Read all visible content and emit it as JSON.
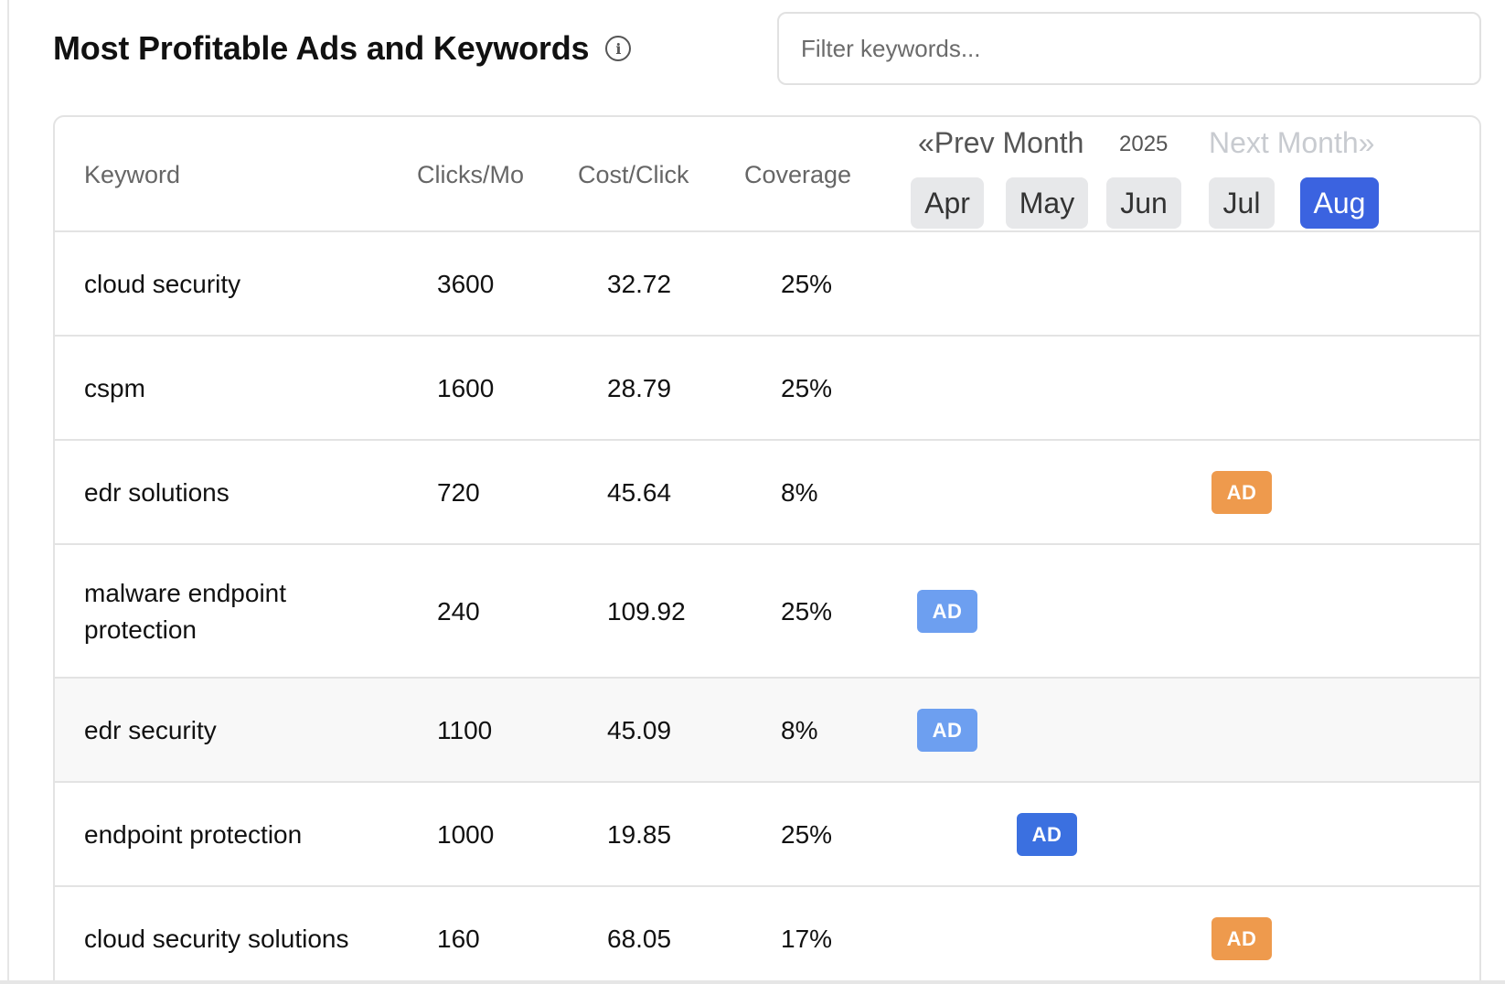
{
  "header": {
    "title": "Most Profitable Ads and Keywords",
    "filter_placeholder": "Filter keywords..."
  },
  "table": {
    "columns": {
      "keyword": "Keyword",
      "clicks": "Clicks/Mo",
      "cost": "Cost/Click",
      "coverage": "Coverage"
    },
    "calendar": {
      "prev_label": "«Prev Month",
      "year": "2025",
      "next_label": "Next Month»",
      "months": [
        "Apr",
        "May",
        "Jun",
        "Jul",
        "Aug"
      ],
      "active_month": "Aug"
    },
    "ad_label": "AD",
    "rows": [
      {
        "keyword": "cloud security",
        "clicks": "3600",
        "cost": "32.72",
        "coverage": "25%",
        "ad": null
      },
      {
        "keyword": "cspm",
        "clicks": "1600",
        "cost": "28.79",
        "coverage": "25%",
        "ad": null
      },
      {
        "keyword": "edr solutions",
        "clicks": "720",
        "cost": "45.64",
        "coverage": "8%",
        "ad": {
          "month": "Jul",
          "color": "#ee9a4d"
        }
      },
      {
        "keyword": "malware endpoint protection",
        "clicks": "240",
        "cost": "109.92",
        "coverage": "25%",
        "ad": {
          "month": "Apr",
          "color": "#6d9ff0"
        }
      },
      {
        "keyword": "edr security",
        "clicks": "1100",
        "cost": "45.09",
        "coverage": "8%",
        "ad": {
          "month": "Apr",
          "color": "#6d9ff0"
        }
      },
      {
        "keyword": "endpoint protection",
        "clicks": "1000",
        "cost": "19.85",
        "coverage": "25%",
        "ad": {
          "month": "May",
          "color": "#3b70e0"
        }
      },
      {
        "keyword": "cloud security solutions",
        "clicks": "160",
        "cost": "68.05",
        "coverage": "17%",
        "ad": {
          "month": "Jul",
          "color": "#ee9a4d"
        }
      }
    ]
  }
}
